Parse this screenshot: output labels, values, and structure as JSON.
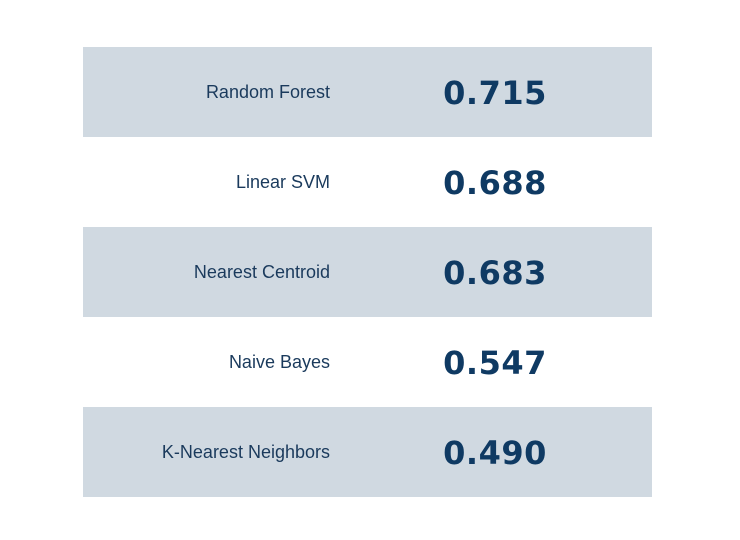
{
  "chart_data": {
    "type": "table",
    "rows": [
      {
        "label": "Random Forest",
        "value": "0.715"
      },
      {
        "label": "Linear SVM",
        "value": "0.688"
      },
      {
        "label": "Nearest Centroid",
        "value": "0.683"
      },
      {
        "label": "Naive Bayes",
        "value": "0.547"
      },
      {
        "label": "K-Nearest Neighbors",
        "value": "0.490"
      }
    ]
  },
  "colors": {
    "shaded_row": "#d0d9e1",
    "label_text": "#1a3a5c",
    "value_text": "#0f3a63"
  }
}
